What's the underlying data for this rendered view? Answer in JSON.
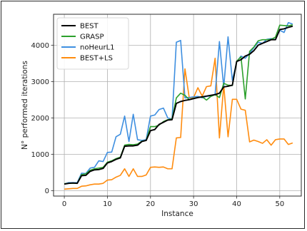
{
  "chart_data": {
    "type": "line",
    "title": "",
    "xlabel": "Instance",
    "ylabel": "N° performed iterations",
    "xlim": [
      -2.5,
      55
    ],
    "ylim": [
      -150,
      4850
    ],
    "xticks": [
      0,
      10,
      20,
      30,
      40,
      50
    ],
    "yticks": [
      0,
      1000,
      2000,
      3000,
      4000
    ],
    "grid": true,
    "legend_position": "top-left",
    "x": [
      0,
      1,
      2,
      3,
      4,
      5,
      6,
      7,
      8,
      9,
      10,
      11,
      12,
      13,
      14,
      15,
      16,
      17,
      18,
      19,
      20,
      21,
      22,
      23,
      24,
      25,
      26,
      27,
      28,
      29,
      30,
      31,
      32,
      33,
      34,
      35,
      36,
      37,
      38,
      39,
      40,
      41,
      42,
      43,
      44,
      45,
      46,
      47,
      48,
      49,
      50,
      51,
      52,
      53
    ],
    "series": [
      {
        "name": "BEST",
        "color": "#000000",
        "values": [
          180,
          200,
          210,
          200,
          410,
          420,
          530,
          570,
          580,
          610,
          760,
          800,
          860,
          900,
          1220,
          1230,
          1230,
          1250,
          1350,
          1380,
          1650,
          1680,
          1820,
          1880,
          1940,
          1950,
          2400,
          2450,
          2480,
          2500,
          2530,
          2560,
          2580,
          2600,
          2620,
          2640,
          2680,
          2850,
          2870,
          2900,
          3550,
          3600,
          3700,
          3750,
          3850,
          4000,
          4050,
          4100,
          4150,
          4150,
          4430,
          4450,
          4490,
          4520
        ]
      },
      {
        "name": "GRASP",
        "color": "#2ca02c",
        "values": [
          190,
          200,
          205,
          200,
          440,
          460,
          560,
          600,
          620,
          640,
          780,
          820,
          880,
          920,
          1250,
          1270,
          1260,
          1280,
          1360,
          1380,
          1760,
          1760,
          1800,
          1900,
          1950,
          1970,
          2550,
          2680,
          2620,
          2500,
          2540,
          2560,
          2580,
          2490,
          2590,
          2640,
          2560,
          2950,
          2900,
          2890,
          3560,
          3680,
          2520,
          3830,
          3950,
          4120,
          4150,
          4150,
          4160,
          4220,
          4550,
          4540,
          4530,
          4560
        ]
      },
      {
        "name": "noHeurL1",
        "color": "#3e8fe0",
        "values": [
          180,
          220,
          220,
          220,
          480,
          470,
          620,
          640,
          820,
          800,
          1050,
          1060,
          1480,
          1550,
          2050,
          1350,
          2100,
          1400,
          1380,
          1400,
          2050,
          2080,
          2230,
          2270,
          2000,
          1960,
          4080,
          4130,
          2550,
          2560,
          2580,
          2590,
          2550,
          2590,
          2600,
          2650,
          4100,
          2850,
          4230,
          3030,
          3540,
          3700,
          3640,
          3780,
          3930,
          4080,
          4050,
          4160,
          4180,
          4150,
          4410,
          4350,
          4620,
          4580
        ]
      },
      {
        "name": "BEST+LS",
        "color": "#ff8c0f",
        "values": [
          40,
          50,
          60,
          60,
          120,
          130,
          160,
          180,
          180,
          200,
          290,
          300,
          370,
          420,
          600,
          390,
          600,
          390,
          390,
          430,
          640,
          650,
          640,
          650,
          600,
          600,
          1450,
          1460,
          3350,
          2550,
          2560,
          2830,
          2600,
          2860,
          2880,
          3640,
          1450,
          2900,
          1480,
          2510,
          2510,
          2240,
          2210,
          1340,
          1390,
          1350,
          1300,
          1400,
          1250,
          1400,
          1420,
          1420,
          1270,
          1310
        ]
      }
    ]
  }
}
